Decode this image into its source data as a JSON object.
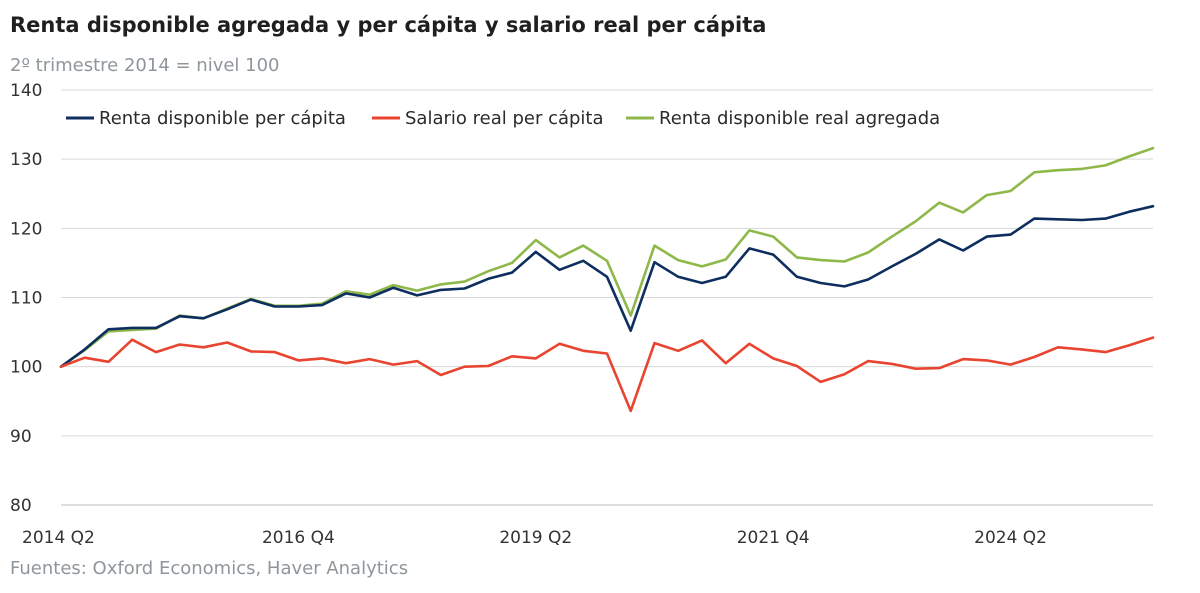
{
  "title": "Renta disponible agregada y per cápita y salario real per cápita",
  "subtitle": "2º trimestre 2014 = nivel 100",
  "source": "Fuentes: Oxford Economics, Haver Analytics",
  "chart_data": {
    "type": "line",
    "x_start": "2014 Q2",
    "x_end": "2025 Q4",
    "x": [
      "2014 Q2",
      "2014 Q3",
      "2014 Q4",
      "2015 Q1",
      "2015 Q2",
      "2015 Q3",
      "2015 Q4",
      "2016 Q1",
      "2016 Q2",
      "2016 Q3",
      "2016 Q4",
      "2017 Q1",
      "2017 Q2",
      "2017 Q3",
      "2017 Q4",
      "2018 Q1",
      "2018 Q2",
      "2018 Q3",
      "2018 Q4",
      "2019 Q1",
      "2019 Q2",
      "2019 Q3",
      "2019 Q4",
      "2020 Q1",
      "2020 Q2",
      "2020 Q3",
      "2020 Q4",
      "2021 Q1",
      "2021 Q2",
      "2021 Q3",
      "2021 Q4",
      "2022 Q1",
      "2022 Q2",
      "2022 Q3",
      "2022 Q4",
      "2023 Q1",
      "2023 Q2",
      "2023 Q3",
      "2023 Q4",
      "2024 Q1",
      "2024 Q2",
      "2024 Q3",
      "2024 Q4",
      "2025 Q1",
      "2025 Q2",
      "2025 Q3",
      "2025 Q4"
    ],
    "x_ticks": [
      "2014 Q2",
      "2016 Q4",
      "2019 Q2",
      "2021 Q4",
      "2024 Q2"
    ],
    "y_ticks": [
      80,
      90,
      100,
      110,
      120,
      130,
      140
    ],
    "ylim": [
      80,
      140
    ],
    "grid": true,
    "legend_position": "top",
    "series": [
      {
        "name": "Renta disponible per cápita",
        "color": "#0d2e5e",
        "values": [
          100.0,
          102.5,
          105.4,
          105.6,
          105.6,
          107.3,
          107.0,
          108.3,
          109.7,
          108.7,
          108.7,
          108.9,
          110.6,
          110.0,
          111.4,
          110.3,
          111.1,
          111.3,
          112.7,
          113.6,
          116.6,
          114.0,
          115.3,
          113.0,
          105.2,
          115.1,
          113.0,
          112.1,
          113.0,
          117.1,
          116.2,
          113.0,
          112.1,
          111.6,
          112.6,
          114.5,
          116.3,
          118.4,
          116.8,
          118.8,
          119.1,
          121.4,
          121.3,
          121.2,
          121.4,
          122.4,
          123.2
        ]
      },
      {
        "name": "Salario real per cápita",
        "color": "#e8442f",
        "values": [
          100.0,
          101.3,
          100.7,
          103.9,
          102.1,
          103.2,
          102.8,
          103.5,
          102.2,
          102.1,
          100.9,
          101.2,
          100.5,
          101.1,
          100.3,
          100.8,
          98.8,
          100.0,
          100.1,
          101.5,
          101.2,
          103.3,
          102.3,
          101.9,
          93.6,
          103.4,
          102.3,
          103.8,
          100.5,
          103.3,
          101.2,
          100.1,
          97.8,
          98.9,
          100.8,
          100.4,
          99.7,
          99.8,
          101.1,
          100.9,
          100.3,
          101.4,
          102.8,
          102.5,
          102.1,
          103.1,
          104.2
        ]
      },
      {
        "name": "Renta disponible real agregada",
        "color": "#8fb84a",
        "values": [
          100.0,
          102.4,
          105.1,
          105.3,
          105.5,
          107.4,
          107.0,
          108.4,
          109.8,
          108.8,
          108.8,
          109.1,
          110.9,
          110.4,
          111.8,
          111.0,
          111.9,
          112.3,
          113.8,
          115.0,
          118.3,
          115.8,
          117.5,
          115.3,
          107.4,
          117.5,
          115.4,
          114.5,
          115.5,
          119.7,
          118.8,
          115.8,
          115.4,
          115.2,
          116.5,
          118.8,
          121.0,
          123.7,
          122.3,
          124.8,
          125.4,
          128.1,
          128.4,
          128.6,
          129.1,
          130.4,
          131.6
        ]
      }
    ]
  }
}
